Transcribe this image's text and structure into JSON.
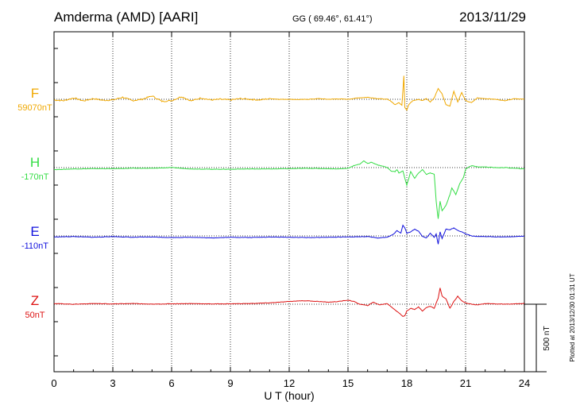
{
  "chart_data": {
    "type": "line",
    "title": {
      "station": "Amderma (AMD)  [AARI]",
      "coords": "GG ( 69.46°,  61.41°)",
      "date": "2013/11/29"
    },
    "xlabel": "U T (hour)",
    "x_ticks": [
      "0",
      "3",
      "6",
      "9",
      "12",
      "15",
      "18",
      "21",
      "24"
    ],
    "xlim": [
      0,
      24
    ],
    "y_scale": {
      "label": "500 nT",
      "value_nT": 500
    },
    "side_note": "Plotted at 2013/12/30 01:31  UT",
    "series": [
      {
        "name": "F",
        "baseline": "59070nT",
        "color": "#f0a800",
        "points": [
          [
            0,
            -5
          ],
          [
            0.5,
            -10
          ],
          [
            1,
            10
          ],
          [
            1.5,
            -12
          ],
          [
            2,
            5
          ],
          [
            2.5,
            -8
          ],
          [
            3,
            -5
          ],
          [
            3.5,
            15
          ],
          [
            4,
            -10
          ],
          [
            4.5,
            0
          ],
          [
            5,
            25
          ],
          [
            5.5,
            -15
          ],
          [
            6,
            -10
          ],
          [
            6.5,
            20
          ],
          [
            7,
            -12
          ],
          [
            7.5,
            10
          ],
          [
            8,
            -5
          ],
          [
            8.5,
            0
          ],
          [
            9,
            -5
          ],
          [
            9.5,
            5
          ],
          [
            10,
            0
          ],
          [
            10.5,
            -5
          ],
          [
            11,
            5
          ],
          [
            11.5,
            0
          ],
          [
            12,
            0
          ],
          [
            12.5,
            -2
          ],
          [
            13,
            0
          ],
          [
            13.5,
            5
          ],
          [
            14,
            0
          ],
          [
            14.5,
            3
          ],
          [
            15,
            0
          ],
          [
            15.5,
            10
          ],
          [
            16,
            15
          ],
          [
            16.5,
            5
          ],
          [
            17,
            0
          ],
          [
            17.2,
            -15
          ],
          [
            17.4,
            -40
          ],
          [
            17.6,
            -25
          ],
          [
            17.75,
            -45
          ],
          [
            17.85,
            175
          ],
          [
            17.9,
            -60
          ],
          [
            18,
            -80
          ],
          [
            18.1,
            -40
          ],
          [
            18.3,
            -10
          ],
          [
            18.6,
            0
          ],
          [
            18.8,
            -10
          ],
          [
            19,
            5
          ],
          [
            19.2,
            -20
          ],
          [
            19.4,
            10
          ],
          [
            19.6,
            80
          ],
          [
            19.8,
            40
          ],
          [
            20,
            -40
          ],
          [
            20.2,
            -50
          ],
          [
            20.4,
            60
          ],
          [
            20.6,
            -20
          ],
          [
            20.8,
            50
          ],
          [
            21,
            -10
          ],
          [
            21.3,
            -25
          ],
          [
            21.6,
            10
          ],
          [
            22,
            5
          ],
          [
            22.5,
            0
          ],
          [
            23,
            -10
          ],
          [
            23.5,
            5
          ],
          [
            24,
            0
          ]
        ]
      },
      {
        "name": "H",
        "baseline": "-170nT",
        "color": "#33dd44",
        "points": [
          [
            0,
            -15
          ],
          [
            1,
            -10
          ],
          [
            2,
            -8
          ],
          [
            3,
            -8
          ],
          [
            4,
            -5
          ],
          [
            5,
            -5
          ],
          [
            6,
            0
          ],
          [
            7,
            -10
          ],
          [
            8,
            -12
          ],
          [
            9,
            -12
          ],
          [
            10,
            -10
          ],
          [
            11,
            -10
          ],
          [
            12,
            -8
          ],
          [
            13,
            -5
          ],
          [
            14,
            -8
          ],
          [
            14.5,
            -10
          ],
          [
            15,
            -5
          ],
          [
            15.3,
            15
          ],
          [
            15.6,
            25
          ],
          [
            15.8,
            50
          ],
          [
            16,
            30
          ],
          [
            16.2,
            40
          ],
          [
            16.5,
            20
          ],
          [
            16.8,
            10
          ],
          [
            17,
            0
          ],
          [
            17.2,
            -25
          ],
          [
            17.4,
            -30
          ],
          [
            17.5,
            -15
          ],
          [
            17.6,
            -40
          ],
          [
            17.8,
            -25
          ],
          [
            18,
            -130
          ],
          [
            18.2,
            -30
          ],
          [
            18.4,
            -80
          ],
          [
            18.6,
            -40
          ],
          [
            18.8,
            -15
          ],
          [
            19,
            -50
          ],
          [
            19.2,
            -40
          ],
          [
            19.4,
            -50
          ],
          [
            19.5,
            -250
          ],
          [
            19.6,
            -380
          ],
          [
            19.7,
            -250
          ],
          [
            19.8,
            -320
          ],
          [
            20,
            -280
          ],
          [
            20.2,
            -200
          ],
          [
            20.3,
            -150
          ],
          [
            20.5,
            -200
          ],
          [
            20.7,
            -120
          ],
          [
            20.9,
            -70
          ],
          [
            21,
            -10
          ],
          [
            21.3,
            15
          ],
          [
            21.6,
            5
          ],
          [
            22,
            5
          ],
          [
            22.5,
            0
          ],
          [
            23,
            0
          ],
          [
            23.5,
            -5
          ],
          [
            24,
            -10
          ]
        ]
      },
      {
        "name": "E",
        "baseline": "-110nT",
        "color": "#1010dd",
        "points": [
          [
            0,
            -8
          ],
          [
            1,
            -5
          ],
          [
            2,
            -10
          ],
          [
            3,
            -5
          ],
          [
            4,
            -10
          ],
          [
            5,
            -8
          ],
          [
            6,
            -12
          ],
          [
            7,
            -10
          ],
          [
            8,
            -15
          ],
          [
            9,
            -10
          ],
          [
            10,
            -12
          ],
          [
            11,
            -8
          ],
          [
            12,
            -10
          ],
          [
            13,
            -12
          ],
          [
            14,
            -10
          ],
          [
            15,
            -8
          ],
          [
            16,
            -5
          ],
          [
            16.5,
            -15
          ],
          [
            17,
            -10
          ],
          [
            17.3,
            10
          ],
          [
            17.5,
            40
          ],
          [
            17.7,
            20
          ],
          [
            17.8,
            80
          ],
          [
            17.9,
            60
          ],
          [
            18,
            20
          ],
          [
            18.2,
            30
          ],
          [
            18.4,
            50
          ],
          [
            18.6,
            35
          ],
          [
            18.8,
            -5
          ],
          [
            19,
            -15
          ],
          [
            19.2,
            20
          ],
          [
            19.4,
            -10
          ],
          [
            19.5,
            15
          ],
          [
            19.6,
            -60
          ],
          [
            19.7,
            30
          ],
          [
            19.8,
            -20
          ],
          [
            20,
            50
          ],
          [
            20.2,
            45
          ],
          [
            20.4,
            60
          ],
          [
            20.6,
            40
          ],
          [
            20.8,
            30
          ],
          [
            21,
            15
          ],
          [
            21.3,
            0
          ],
          [
            21.6,
            -5
          ],
          [
            22,
            -5
          ],
          [
            23,
            -8
          ],
          [
            24,
            -2
          ]
        ]
      },
      {
        "name": "Z",
        "baseline": "50nT",
        "color": "#dd1111",
        "points": [
          [
            0,
            5
          ],
          [
            1,
            0
          ],
          [
            2,
            5
          ],
          [
            3,
            2
          ],
          [
            4,
            5
          ],
          [
            5,
            0
          ],
          [
            6,
            3
          ],
          [
            7,
            5
          ],
          [
            8,
            2
          ],
          [
            9,
            3
          ],
          [
            10,
            5
          ],
          [
            11,
            10
          ],
          [
            11.5,
            15
          ],
          [
            12,
            20
          ],
          [
            12.5,
            25
          ],
          [
            13,
            25
          ],
          [
            13.5,
            20
          ],
          [
            14,
            15
          ],
          [
            14.5,
            20
          ],
          [
            15,
            30
          ],
          [
            15.3,
            20
          ],
          [
            15.6,
            0
          ],
          [
            16,
            -10
          ],
          [
            16.3,
            15
          ],
          [
            16.6,
            -5
          ],
          [
            17,
            5
          ],
          [
            17.3,
            -30
          ],
          [
            17.6,
            -65
          ],
          [
            17.8,
            -90
          ],
          [
            17.9,
            -85
          ],
          [
            18,
            -50
          ],
          [
            18.2,
            -30
          ],
          [
            18.4,
            -40
          ],
          [
            18.6,
            -20
          ],
          [
            18.8,
            -50
          ],
          [
            19,
            -25
          ],
          [
            19.2,
            -15
          ],
          [
            19.4,
            -30
          ],
          [
            19.6,
            45
          ],
          [
            19.7,
            120
          ],
          [
            19.8,
            60
          ],
          [
            20,
            40
          ],
          [
            20.2,
            -30
          ],
          [
            20.4,
            20
          ],
          [
            20.6,
            60
          ],
          [
            20.8,
            25
          ],
          [
            21,
            10
          ],
          [
            21.3,
            0
          ],
          [
            21.6,
            -5
          ],
          [
            22,
            5
          ],
          [
            23,
            0
          ],
          [
            24,
            5
          ]
        ]
      }
    ]
  }
}
